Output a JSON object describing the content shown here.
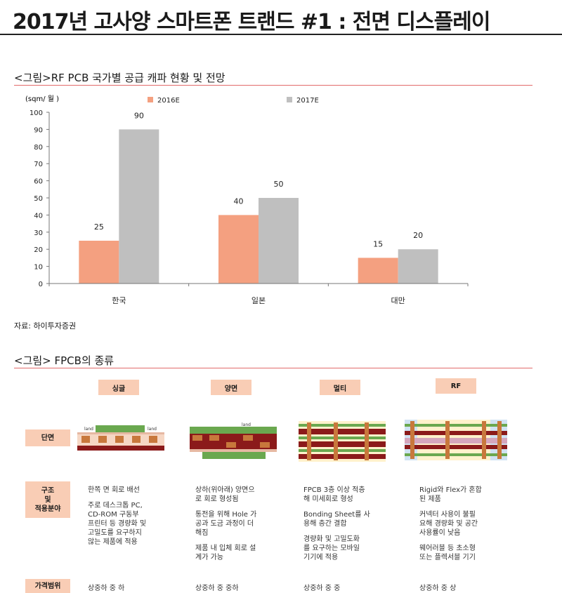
{
  "page_title": "2017년 고사양 스마트폰 트랜드 #1 : 전면 디스플레이",
  "chart_section": {
    "title": "<그림>RF PCB 국가별 공급 캐파 현황 및 전망",
    "source": "자료: 하이투자증권"
  },
  "chart_data": {
    "type": "bar",
    "ylabel": "(sqm/ 월 )",
    "ylim": [
      0,
      100
    ],
    "yticks": [
      "0",
      "10",
      "20",
      "30",
      "40",
      "50",
      "60",
      "70",
      "80",
      "90",
      "100"
    ],
    "categories": [
      "한국",
      "일본",
      "대만"
    ],
    "series": [
      {
        "name": "2016E",
        "values": [
          25,
          40,
          15
        ],
        "color": "#f4a080"
      },
      {
        "name": "2017E",
        "values": [
          90,
          50,
          20
        ],
        "color": "#bfbfbf"
      }
    ],
    "legend": "top"
  },
  "fpcb_section": {
    "title": "<그림> FPCB의 종류",
    "columns": [
      "싱글",
      "양면",
      "멀티",
      "RF"
    ],
    "row_labels": {
      "cross_section": "단면",
      "structure": "구조\n및\n적용분야",
      "price": "가격범위"
    },
    "diagram_labels": {
      "land_single": "land",
      "land_single_2": "land",
      "land_double": "land"
    },
    "structure": [
      [
        "한쪽 면 회로 배선",
        "주로 데스크톱 PC,\nCD-ROM 구동부\n프린터 등 경량화 및\n고밀도를 요구하지\n않는 제품에 적용"
      ],
      [
        "상하(위아래) 양면으\n로 회로 형성됨",
        "통전을 위해 Hole 가\n공과 도금 과정이 더\n해짐",
        "제품 내 입체 회로 설\n계가 가능"
      ],
      [
        "FPCB 3층 이상 적층\n해 미세회로 형성",
        "Bonding Sheet를 사\n용해 층간 결합",
        "경량화 및 고밀도화\n를 요구하는 모바일\n기기에 적용"
      ],
      [
        "Rigid와 Flex가 혼합\n된 제품",
        "커넥터 사용이 불필\n요해 경량화 및 공간\n사용률이 낮음",
        "웨어러블 등 초소형\n또는 플렉서블 기기"
      ]
    ],
    "price": [
      "상중하 중 하",
      "상중하 중 중하",
      "상중하 중 중",
      "상중하 중 상"
    ],
    "colors": {
      "header_fill": "#f9cdb5",
      "copper": "#c8783c",
      "green": "#6aa84f",
      "darkred": "#8b1a1a",
      "blue": "#9fc5e8"
    }
  }
}
